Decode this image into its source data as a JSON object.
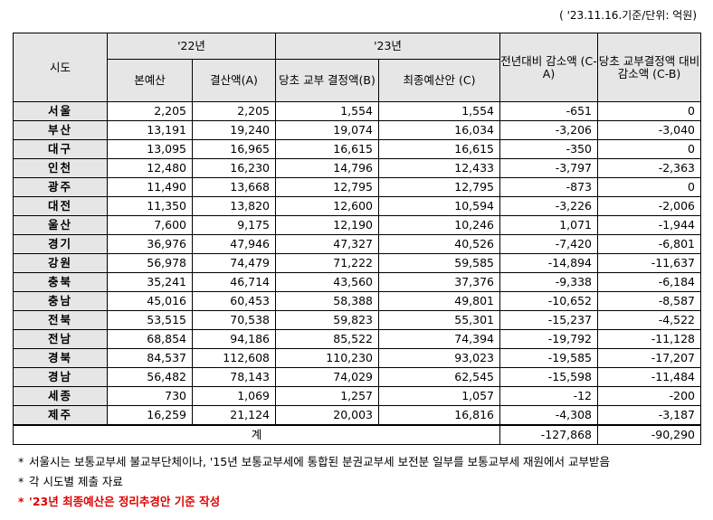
{
  "unit_note": "( '23.11.16.기준/단위: 억원)",
  "headers": {
    "sido": "시도",
    "y22": "'22년",
    "y23": "'23년",
    "bon": "본예산",
    "gyeolsan": "결산액(A)",
    "dangcho": "당초 교부 결정액(B)",
    "choejong": "최종예산안 (C)",
    "diff_prev": "전년대비 감소액 (C-A)",
    "diff_init": "당초 교부결정액 대비 감소액 (C-B)"
  },
  "rows": [
    {
      "region": "서울",
      "bon": "2,205",
      "gyeolsan": "2,205",
      "dangcho": "1,554",
      "choejong": "1,554",
      "diff_prev": "-651",
      "diff_init": "0"
    },
    {
      "region": "부산",
      "bon": "13,191",
      "gyeolsan": "19,240",
      "dangcho": "19,074",
      "choejong": "16,034",
      "diff_prev": "-3,206",
      "diff_init": "-3,040"
    },
    {
      "region": "대구",
      "bon": "13,095",
      "gyeolsan": "16,965",
      "dangcho": "16,615",
      "choejong": "16,615",
      "diff_prev": "-350",
      "diff_init": "0"
    },
    {
      "region": "인천",
      "bon": "12,480",
      "gyeolsan": "16,230",
      "dangcho": "14,796",
      "choejong": "12,433",
      "diff_prev": "-3,797",
      "diff_init": "-2,363"
    },
    {
      "region": "광주",
      "bon": "11,490",
      "gyeolsan": "13,668",
      "dangcho": "12,795",
      "choejong": "12,795",
      "diff_prev": "-873",
      "diff_init": "0"
    },
    {
      "region": "대전",
      "bon": "11,350",
      "gyeolsan": "13,820",
      "dangcho": "12,600",
      "choejong": "10,594",
      "diff_prev": "-3,226",
      "diff_init": "-2,006"
    },
    {
      "region": "울산",
      "bon": "7,600",
      "gyeolsan": "9,175",
      "dangcho": "12,190",
      "choejong": "10,246",
      "diff_prev": "1,071",
      "diff_init": "-1,944"
    },
    {
      "region": "경기",
      "bon": "36,976",
      "gyeolsan": "47,946",
      "dangcho": "47,327",
      "choejong": "40,526",
      "diff_prev": "-7,420",
      "diff_init": "-6,801"
    },
    {
      "region": "강원",
      "bon": "56,978",
      "gyeolsan": "74,479",
      "dangcho": "71,222",
      "choejong": "59,585",
      "diff_prev": "-14,894",
      "diff_init": "-11,637"
    },
    {
      "region": "충북",
      "bon": "35,241",
      "gyeolsan": "46,714",
      "dangcho": "43,560",
      "choejong": "37,376",
      "diff_prev": "-9,338",
      "diff_init": "-6,184"
    },
    {
      "region": "충남",
      "bon": "45,016",
      "gyeolsan": "60,453",
      "dangcho": "58,388",
      "choejong": "49,801",
      "diff_prev": "-10,652",
      "diff_init": "-8,587"
    },
    {
      "region": "전북",
      "bon": "53,515",
      "gyeolsan": "70,538",
      "dangcho": "59,823",
      "choejong": "55,301",
      "diff_prev": "-15,237",
      "diff_init": "-4,522"
    },
    {
      "region": "전남",
      "bon": "68,854",
      "gyeolsan": "94,186",
      "dangcho": "85,522",
      "choejong": "74,394",
      "diff_prev": "-19,792",
      "diff_init": "-11,128"
    },
    {
      "region": "경북",
      "bon": "84,537",
      "gyeolsan": "112,608",
      "dangcho": "110,230",
      "choejong": "93,023",
      "diff_prev": "-19,585",
      "diff_init": "-17,207"
    },
    {
      "region": "경남",
      "bon": "56,482",
      "gyeolsan": "78,143",
      "dangcho": "74,029",
      "choejong": "62,545",
      "diff_prev": "-15,598",
      "diff_init": "-11,484"
    },
    {
      "region": "세종",
      "bon": "730",
      "gyeolsan": "1,069",
      "dangcho": "1,257",
      "choejong": "1,057",
      "diff_prev": "-12",
      "diff_init": "-200"
    },
    {
      "region": "제주",
      "bon": "16,259",
      "gyeolsan": "21,124",
      "dangcho": "20,003",
      "choejong": "16,816",
      "diff_prev": "-4,308",
      "diff_init": "-3,187"
    }
  ],
  "total": {
    "label": "계",
    "diff_prev": "-127,868",
    "diff_init": "-90,290"
  },
  "notes": [
    {
      "mark": "*",
      "text": "서울시는 보통교부세 불교부단체이나, '15년 보통교부세에 통합된 분권교부세 보전분 일부를 보통교부세 재원에서 교부받음"
    },
    {
      "mark": "*",
      "text": "각 시도별 제출 자료"
    },
    {
      "mark": "*",
      "text": "'23년 최종예산은 정리추경안 기준 작성"
    }
  ]
}
